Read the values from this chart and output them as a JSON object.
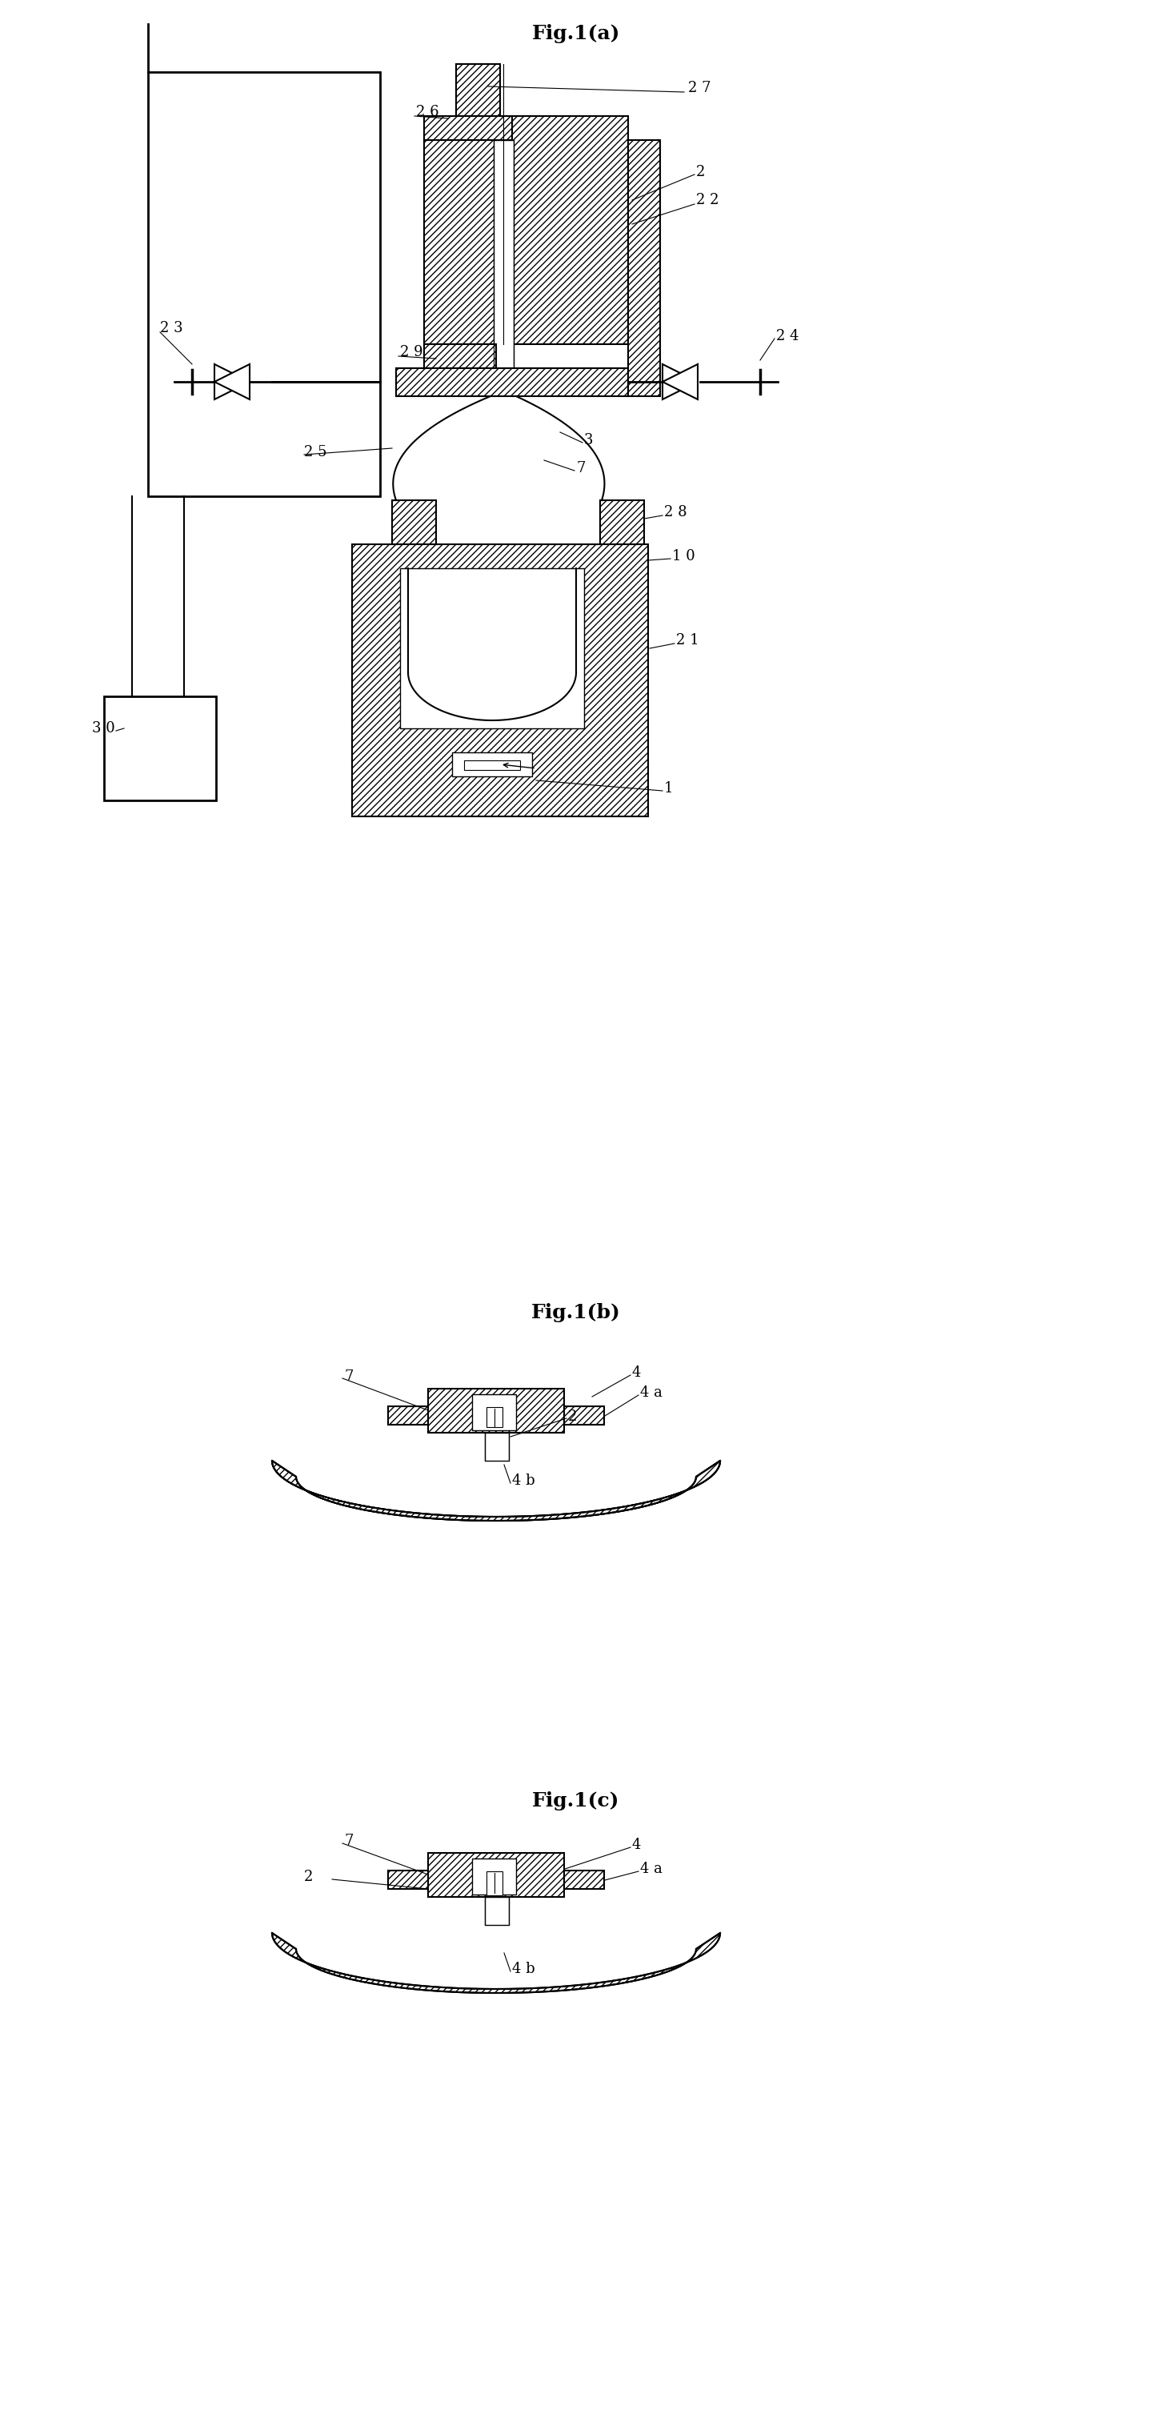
{
  "fig_width": 14.41,
  "fig_height": 30.36,
  "bg_color": "#ffffff",
  "lc": "#000000",
  "lw": 1.5,
  "hatch": "////",
  "title_a": "Fig.1(a)",
  "title_b": "Fig.1(b)",
  "title_c": "Fig.1(c)"
}
